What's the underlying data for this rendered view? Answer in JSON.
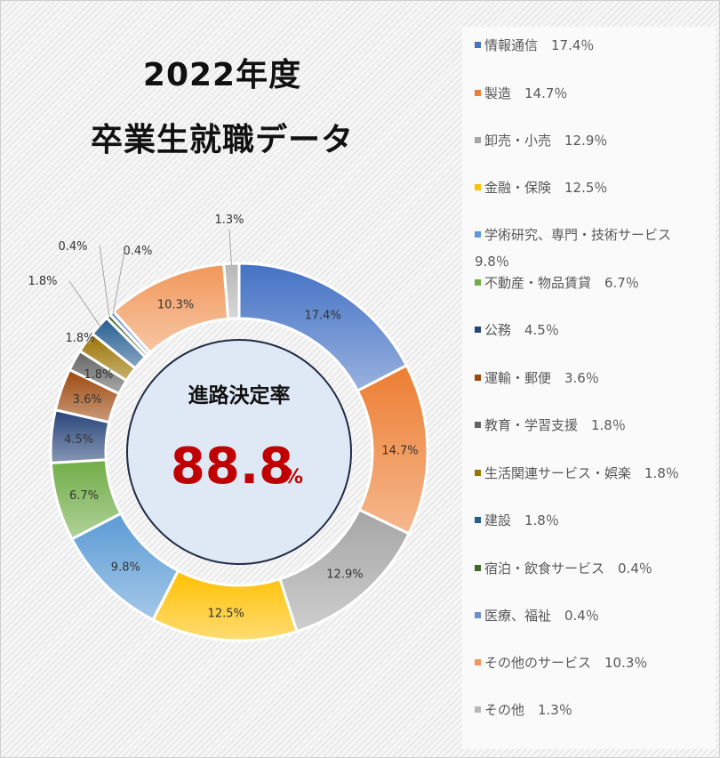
{
  "title_line1": "2022年度",
  "title_line2": "卒業生就職データ",
  "center_label": "進路決定率",
  "center_value": "88.8",
  "center_unit": "%",
  "colors": {
    "center_fill": "#dfe8f5",
    "center_stroke": "#1f2a44",
    "center_value": "#c00000"
  },
  "chart_data": {
    "type": "donut",
    "categories": [
      "情報通信",
      "製造",
      "卸売・小売",
      "金融・保険",
      "学術研究、専門・技術サービス",
      "不動産・物品賃貸",
      "公務",
      "運輸・郵便",
      "教育・学習支援",
      "生活関連サービス・娯楽",
      "建設",
      "宿泊・飲食サービス",
      "医療、福祉",
      "その他のサービス",
      "その他"
    ],
    "values": [
      17.4,
      14.7,
      12.9,
      12.5,
      9.8,
      6.7,
      4.5,
      3.6,
      1.8,
      1.8,
      1.8,
      0.4,
      0.4,
      10.3,
      1.3
    ],
    "data_labels": [
      "17.4%",
      "14.7%",
      "12.9%",
      "12.5%",
      "9.8%",
      "6.7%",
      "4.5%",
      "3.6%",
      "1.8%",
      "1.8%",
      "1.8%",
      "0.4%",
      "0.4%",
      "10.3%",
      "1.3%"
    ],
    "colors": [
      "#4472c4",
      "#ed7d31",
      "#a5a5a5",
      "#ffc000",
      "#5b9bd5",
      "#70ad47",
      "#264478",
      "#9e480e",
      "#636363",
      "#997300",
      "#255e91",
      "#43682b",
      "#698ed0",
      "#f1975a",
      "#b7b7b7"
    ],
    "legend_position": "right",
    "legend": [
      "情報通信　17.4％",
      "製造　14.7％",
      "卸売・小売　12.9％",
      "金融・保険　12.5％",
      "学術研究、専門・技術サービス\n9.8％",
      "不動産・物品賃貸　6.7％",
      "公務　4.5％",
      "運輸・郵便　3.6％",
      "教育・学習支援　1.8％",
      "生活関連サービス・娯楽　1.8％",
      "建設　1.8％",
      "宿泊・飲食サービス　0.4％",
      "医療、福祉　0.4％",
      "その他のサービス　10.3％",
      "その他　1.3％"
    ]
  }
}
